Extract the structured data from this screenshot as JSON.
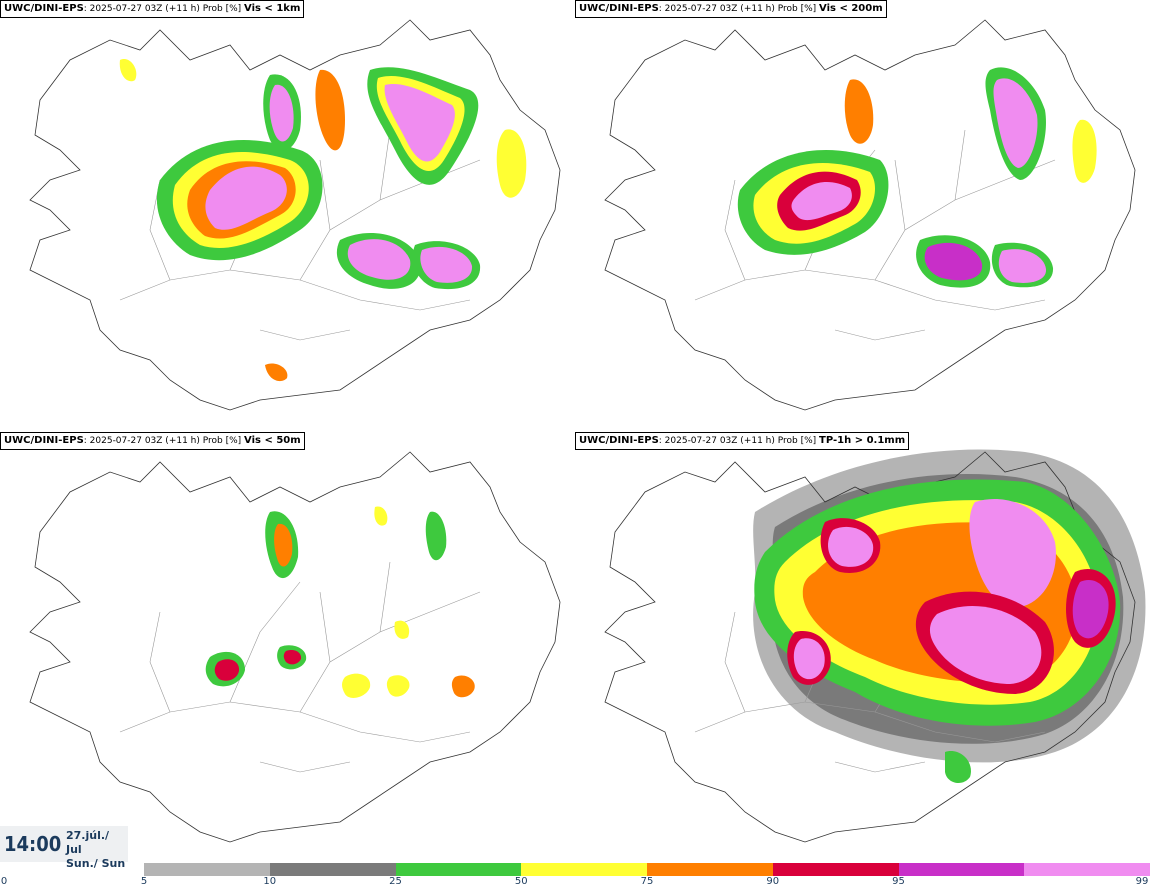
{
  "panels": [
    {
      "model": "UWC/DINI-EPS",
      "run": ": 2025-07-27 03Z (+11 h) Prob [%]",
      "param": "Vis < 1km"
    },
    {
      "model": "UWC/DINI-EPS",
      "run": ": 2025-07-27 03Z (+11 h) Prob [%]",
      "param": "Vis < 200m"
    },
    {
      "model": "UWC/DINI-EPS",
      "run": ": 2025-07-27 03Z (+11 h) Prob [%]",
      "param": "Vis < 50m"
    },
    {
      "model": "UWC/DINI-EPS",
      "run": ": 2025-07-27 03Z (+11 h) Prob [%]",
      "param": "TP-1h > 0.1mm"
    }
  ],
  "valid_time": {
    "time": "14:00",
    "date_line1": "27.júl./ Jul",
    "date_line2": "Sun./ Sun"
  },
  "legend": {
    "ticks": [
      "0",
      "5",
      "10",
      "25",
      "50",
      "75",
      "90",
      "95",
      "99"
    ],
    "colors": [
      "#b4b4b4",
      "#7a7a7a",
      "#3ec93e",
      "#ffff33",
      "#ff7f00",
      "#d9003b",
      "#c82fc8",
      "#f08cf0"
    ]
  },
  "map_colors": {
    "coast": "#333333",
    "roads": "#999999"
  }
}
